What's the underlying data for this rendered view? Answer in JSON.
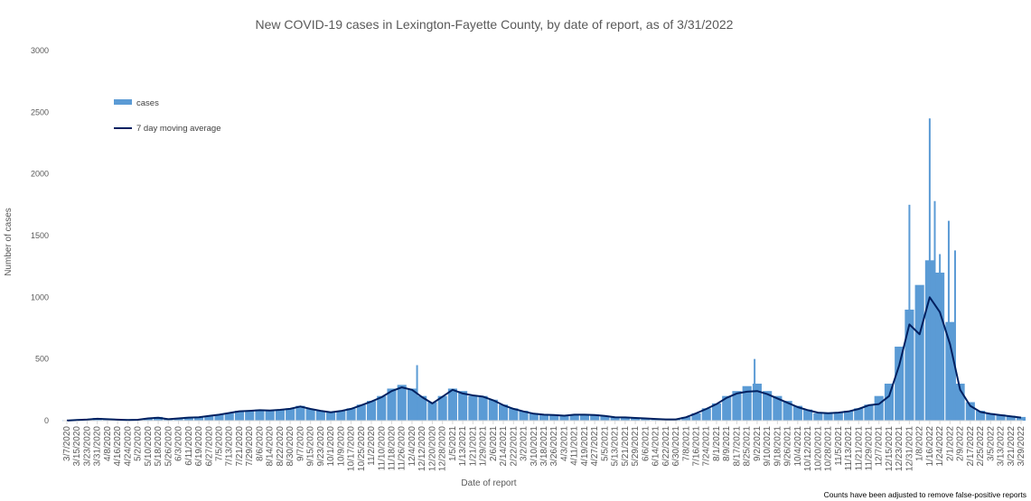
{
  "chart_data": {
    "type": "bar",
    "title": "New COVID-19 cases in Lexington-Fayette County, by date of report, as of 3/31/2022",
    "xlabel": "Date of report",
    "ylabel": "Number of cases",
    "ylim": [
      0,
      3000
    ],
    "yticks": [
      "0",
      "500",
      "1000",
      "1500",
      "2000",
      "2500",
      "3000"
    ],
    "grid": false,
    "legend_position": "top-left",
    "footnote": "Counts have been adjusted to remove false-positive reports",
    "x_start": "3/7/2020",
    "x_end": "3/29/2022",
    "x_tick_labels": [
      "3/7/2020",
      "3/15/2020",
      "3/23/2020",
      "3/31/2020",
      "4/8/2020",
      "4/16/2020",
      "4/24/2020",
      "5/2/2020",
      "5/10/2020",
      "5/18/2020",
      "5/26/2020",
      "6/3/2020",
      "6/11/2020",
      "6/19/2020",
      "6/27/2020",
      "7/5/2020",
      "7/13/2020",
      "7/21/2020",
      "7/29/2020",
      "8/6/2020",
      "8/14/2020",
      "8/22/2020",
      "8/30/2020",
      "9/7/2020",
      "9/15/2020",
      "9/23/2020",
      "10/1/2020",
      "10/9/2020",
      "10/17/2020",
      "10/25/2020",
      "11/2/2020",
      "11/10/2020",
      "11/18/2020",
      "11/26/2020",
      "12/4/2020",
      "12/12/2020",
      "12/20/2020",
      "12/28/2020",
      "1/5/2021",
      "1/13/2021",
      "1/21/2021",
      "1/29/2021",
      "2/6/2021",
      "2/14/2021",
      "2/22/2021",
      "3/2/2021",
      "3/10/2021",
      "3/18/2021",
      "3/26/2021",
      "4/3/2021",
      "4/11/2021",
      "4/19/2021",
      "4/27/2021",
      "5/5/2021",
      "5/13/2021",
      "5/21/2021",
      "5/29/2021",
      "6/6/2021",
      "6/14/2021",
      "6/22/2021",
      "6/30/2021",
      "7/8/2021",
      "7/16/2021",
      "7/24/2021",
      "8/1/2021",
      "8/9/2021",
      "8/17/2021",
      "8/25/2021",
      "9/2/2021",
      "9/10/2021",
      "9/18/2021",
      "9/26/2021",
      "10/4/2021",
      "10/12/2021",
      "10/20/2021",
      "10/28/2021",
      "11/5/2021",
      "11/13/2021",
      "11/21/2021",
      "11/29/2021",
      "12/7/2021",
      "12/15/2021",
      "12/23/2021",
      "12/31/2021",
      "1/8/2022",
      "1/16/2022",
      "1/24/2022",
      "2/1/2022",
      "2/9/2022",
      "2/17/2022",
      "2/25/2022",
      "3/5/2022",
      "3/13/2022",
      "3/21/2022",
      "3/29/2022"
    ],
    "series": [
      {
        "name": "cases",
        "kind": "bar",
        "color": "#5b9bd5",
        "sample_every_days": 8,
        "values": [
          2,
          6,
          10,
          22,
          15,
          10,
          6,
          8,
          20,
          30,
          12,
          20,
          30,
          30,
          40,
          50,
          60,
          80,
          80,
          90,
          80,
          90,
          100,
          120,
          95,
          80,
          70,
          80,
          100,
          130,
          160,
          200,
          260,
          290,
          260,
          200,
          150,
          200,
          260,
          240,
          200,
          200,
          170,
          130,
          100,
          80,
          60,
          50,
          50,
          40,
          50,
          50,
          50,
          40,
          30,
          30,
          25,
          20,
          15,
          10,
          10,
          30,
          60,
          100,
          140,
          200,
          240,
          280,
          300,
          240,
          200,
          160,
          120,
          90,
          60,
          60,
          70,
          80,
          100,
          130,
          200,
          300,
          600,
          900,
          1100,
          1300,
          1200,
          800,
          300,
          150,
          80,
          60,
          50,
          40,
          30
        ]
      },
      {
        "name": "7 day moving average",
        "kind": "line",
        "color": "#002060",
        "sample_every_days": 8,
        "values": [
          1,
          5,
          9,
          15,
          12,
          8,
          5,
          7,
          18,
          24,
          12,
          18,
          25,
          27,
          38,
          48,
          62,
          76,
          80,
          85,
          82,
          88,
          96,
          115,
          95,
          80,
          68,
          78,
          96,
          125,
          155,
          190,
          240,
          270,
          250,
          190,
          140,
          195,
          250,
          220,
          205,
          195,
          165,
          125,
          96,
          75,
          56,
          48,
          46,
          40,
          48,
          48,
          46,
          38,
          28,
          26,
          22,
          18,
          14,
          10,
          10,
          28,
          60,
          95,
          135,
          185,
          220,
          235,
          240,
          215,
          180,
          145,
          110,
          85,
          65,
          60,
          65,
          75,
          95,
          125,
          135,
          200,
          450,
          780,
          700,
          1000,
          880,
          620,
          250,
          120,
          70,
          55,
          45,
          35,
          25
        ]
      },
      {
        "name": "cases (annotated peaks)",
        "kind": "spikes",
        "dates": [
          "12/31/2021",
          "1/16/2022",
          "1/20/2022",
          "1/24/2022",
          "1/31/2022",
          "2/5/2022",
          "8/31/2021",
          "12/8/2020"
        ],
        "values": [
          1750,
          2450,
          1780,
          1350,
          1620,
          1380,
          500,
          450
        ]
      }
    ]
  },
  "legend": [
    {
      "label": "cases",
      "color": "#5b9bd5",
      "kind": "bar"
    },
    {
      "label": "7 day moving average",
      "color": "#002060",
      "kind": "line"
    }
  ]
}
